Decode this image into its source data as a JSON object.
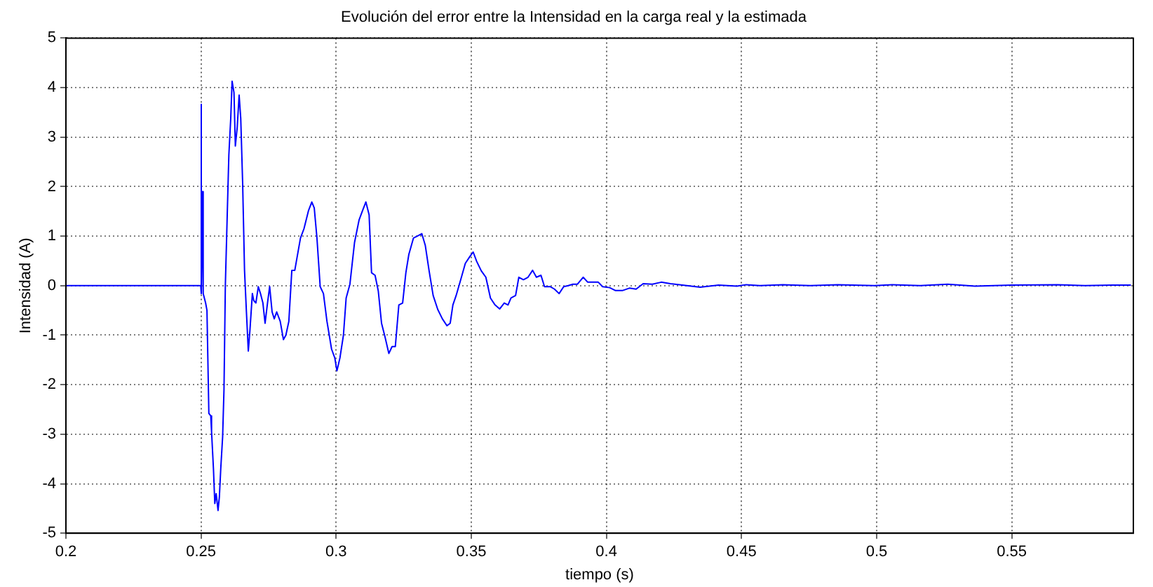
{
  "chart_data": {
    "type": "line",
    "title": "Evolución del error entre la Intensidad en la carga real y la estimada",
    "xlabel": "tiempo (s)",
    "ylabel": "Intensidad (A)",
    "x": [
      0.2,
      0.2499,
      0.25,
      0.2502,
      0.2505,
      0.2508,
      0.2517,
      0.2522,
      0.2529,
      0.2536,
      0.2539,
      0.2546,
      0.2551,
      0.2556,
      0.2563,
      0.2568,
      0.2573,
      0.258,
      0.2585,
      0.259,
      0.2597,
      0.2603,
      0.261,
      0.2615,
      0.2622,
      0.2627,
      0.2634,
      0.2641,
      0.2647,
      0.2654,
      0.2661,
      0.2668,
      0.2675,
      0.2681,
      0.269,
      0.2695,
      0.2703,
      0.2712,
      0.272,
      0.2729,
      0.2737,
      0.2746,
      0.2754,
      0.2763,
      0.2771,
      0.278,
      0.2793,
      0.2805,
      0.2814,
      0.2825,
      0.2836,
      0.2847,
      0.2856,
      0.2868,
      0.2881,
      0.2898,
      0.291,
      0.2919,
      0.2929,
      0.2941,
      0.2953,
      0.2966,
      0.2983,
      0.2995,
      0.3003,
      0.3014,
      0.3027,
      0.3037,
      0.3051,
      0.3068,
      0.3085,
      0.3098,
      0.311,
      0.3122,
      0.3131,
      0.3144,
      0.3156,
      0.3168,
      0.3181,
      0.3195,
      0.3207,
      0.3219,
      0.3232,
      0.3246,
      0.3258,
      0.3269,
      0.3286,
      0.33,
      0.3317,
      0.333,
      0.3344,
      0.3359,
      0.3376,
      0.3393,
      0.341,
      0.3422,
      0.3432,
      0.3444,
      0.3461,
      0.3478,
      0.3495,
      0.3507,
      0.352,
      0.3537,
      0.3554,
      0.3571,
      0.3588,
      0.3605,
      0.3622,
      0.3636,
      0.3647,
      0.3664,
      0.3676,
      0.3693,
      0.371,
      0.3727,
      0.3741,
      0.3758,
      0.3771,
      0.3792,
      0.3808,
      0.3825,
      0.3842,
      0.3859,
      0.3876,
      0.3893,
      0.3914,
      0.3931,
      0.3953,
      0.397,
      0.3986,
      0.4012,
      0.4034,
      0.4059,
      0.4085,
      0.411,
      0.4136,
      0.417,
      0.4203,
      0.4237,
      0.4271,
      0.4314,
      0.4347,
      0.4415,
      0.4483,
      0.4517,
      0.4568,
      0.4653,
      0.4754,
      0.4856,
      0.4992,
      0.5059,
      0.5161,
      0.5263,
      0.5364,
      0.55,
      0.5669,
      0.5771,
      0.5873,
      0.5941
    ],
    "series": [
      {
        "color": "#0000ff",
        "values": [
          0,
          0,
          3.66,
          -0.16,
          1.9,
          -0.16,
          -0.35,
          -0.5,
          -2.58,
          -2.63,
          -2.95,
          -3.7,
          -4.4,
          -4.2,
          -4.54,
          -4.26,
          -3.7,
          -3.05,
          -2.1,
          0,
          1.43,
          2.64,
          3.38,
          4.13,
          3.9,
          2.82,
          3.2,
          3.85,
          3.38,
          2.08,
          0.31,
          -0.53,
          -1.32,
          -0.9,
          -0.16,
          -0.3,
          -0.35,
          -0.02,
          -0.16,
          -0.35,
          -0.76,
          -0.35,
          -0.02,
          -0.53,
          -0.67,
          -0.53,
          -0.72,
          -1.09,
          -1.0,
          -0.72,
          0.31,
          0.31,
          0.59,
          0.96,
          1.15,
          1.52,
          1.69,
          1.57,
          0.96,
          -0.02,
          -0.16,
          -0.72,
          -1.28,
          -1.46,
          -1.72,
          -1.46,
          -1.0,
          -0.25,
          0.03,
          0.87,
          1.33,
          1.52,
          1.69,
          1.43,
          0.26,
          0.21,
          -0.11,
          -0.76,
          -1.04,
          -1.37,
          -1.23,
          -1.23,
          -0.39,
          -0.35,
          0.26,
          0.63,
          0.96,
          1.0,
          1.05,
          0.81,
          0.3,
          -0.2,
          -0.48,
          -0.67,
          -0.81,
          -0.76,
          -0.39,
          -0.2,
          0.12,
          0.45,
          0.59,
          0.68,
          0.49,
          0.3,
          0.17,
          -0.25,
          -0.39,
          -0.47,
          -0.35,
          -0.39,
          -0.25,
          -0.2,
          0.17,
          0.12,
          0.17,
          0.31,
          0.17,
          0.21,
          -0.02,
          -0.02,
          -0.07,
          -0.16,
          -0.02,
          0,
          0.03,
          0.03,
          0.17,
          0.07,
          0.07,
          0.07,
          -0.02,
          -0.04,
          -0.1,
          -0.1,
          -0.05,
          -0.07,
          0.04,
          0.03,
          0.07,
          0.04,
          0.02,
          -0.01,
          -0.03,
          0.01,
          -0.01,
          0.02,
          0,
          0.02,
          0,
          0.02,
          0,
          0.02,
          0,
          0.03,
          -0.01,
          0.01,
          0.02,
          0,
          0.01,
          0.01
        ]
      }
    ],
    "xlim": [
      0.2,
      0.595
    ],
    "xticks": [
      0.2,
      0.25,
      0.3,
      0.35,
      0.4,
      0.45,
      0.5,
      0.55
    ],
    "ylim": [
      -5,
      5
    ],
    "yticks": [
      -5,
      -4,
      -3,
      -2,
      -1,
      0,
      1,
      2,
      3,
      4,
      5
    ],
    "grid": true,
    "legend": false,
    "marker": "none",
    "line_style": "solid"
  }
}
